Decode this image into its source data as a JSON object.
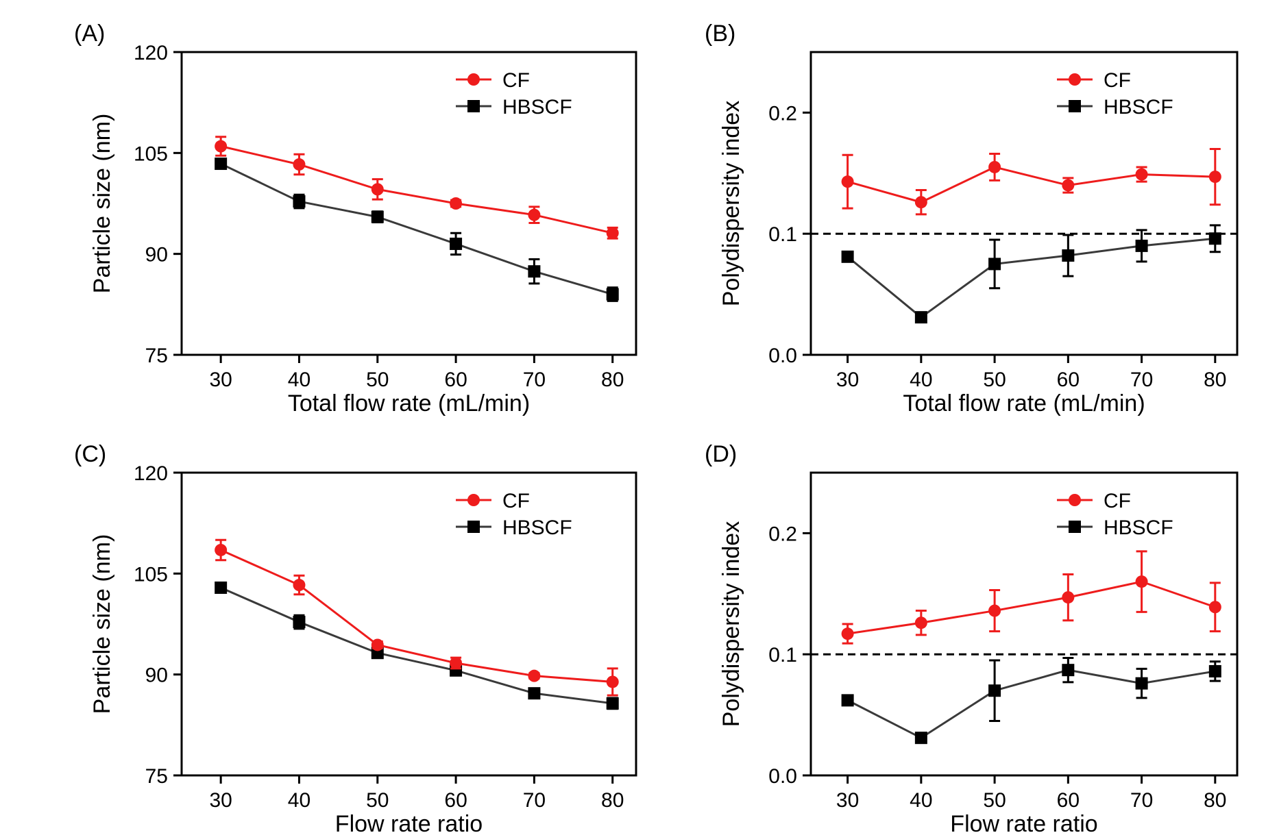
{
  "figure": {
    "colors": {
      "cf": "#ee1c1c",
      "hbscf": "#000000",
      "hbscf_line": "#3a3a3a",
      "reference": "#000000"
    }
  },
  "chart_data": [
    {
      "panel": "(A)",
      "type": "line",
      "xlabel": "Total flow rate (mL/min)",
      "ylabel": "Particle size (nm)",
      "x": [
        30,
        40,
        50,
        60,
        70,
        80
      ],
      "xlim": [
        25,
        83
      ],
      "ylim": [
        75,
        120
      ],
      "yticks": [
        75,
        90,
        105,
        120
      ],
      "ytick_labels": [
        "75",
        "90",
        "105",
        "120"
      ],
      "xtick_labels": [
        "30",
        "40",
        "50",
        "60",
        "70",
        "80"
      ],
      "legend_position": "top-right",
      "series": [
        {
          "name": "CF",
          "marker": "circle",
          "values": [
            106.0,
            103.3,
            99.6,
            97.5,
            95.8,
            93.1
          ],
          "errors": [
            1.4,
            1.5,
            1.5,
            0.5,
            1.2,
            0.8
          ]
        },
        {
          "name": "HBSCF",
          "marker": "square",
          "values": [
            103.4,
            97.8,
            95.5,
            91.5,
            87.4,
            84.0
          ],
          "errors": [
            0.6,
            1.0,
            0.8,
            1.6,
            1.8,
            1.0
          ]
        }
      ]
    },
    {
      "panel": "(B)",
      "type": "line",
      "xlabel": "Total flow rate (mL/min)",
      "ylabel": "Polydispersity index",
      "x": [
        30,
        40,
        50,
        60,
        70,
        80
      ],
      "xlim": [
        25,
        83
      ],
      "ylim": [
        0.0,
        0.25
      ],
      "yticks": [
        0.0,
        0.1,
        0.2
      ],
      "ytick_labels": [
        "0.0",
        "0.1",
        "0.2"
      ],
      "xtick_labels": [
        "30",
        "40",
        "50",
        "60",
        "70",
        "80"
      ],
      "reference_line": 0.1,
      "legend_position": "top-right",
      "series": [
        {
          "name": "CF",
          "marker": "circle",
          "values": [
            0.143,
            0.126,
            0.155,
            0.14,
            0.149,
            0.147
          ],
          "errors": [
            0.022,
            0.01,
            0.011,
            0.006,
            0.006,
            0.023
          ]
        },
        {
          "name": "HBSCF",
          "marker": "square",
          "values": [
            0.081,
            0.031,
            0.075,
            0.082,
            0.09,
            0.096
          ],
          "errors": [
            0.0,
            0.0,
            0.02,
            0.017,
            0.013,
            0.011
          ]
        }
      ]
    },
    {
      "panel": "(C)",
      "type": "line",
      "xlabel": "Flow rate ratio",
      "ylabel": "Particle size (nm)",
      "x": [
        30,
        40,
        50,
        60,
        70,
        80
      ],
      "xlim": [
        25,
        83
      ],
      "ylim": [
        75,
        120
      ],
      "yticks": [
        75,
        90,
        105,
        120
      ],
      "ytick_labels": [
        "75",
        "90",
        "105",
        "120"
      ],
      "xtick_labels": [
        "30",
        "40",
        "50",
        "60",
        "70",
        "80"
      ],
      "legend_position": "top-right",
      "series": [
        {
          "name": "CF",
          "marker": "circle",
          "values": [
            108.5,
            103.3,
            94.4,
            91.7,
            89.8,
            88.9
          ],
          "errors": [
            1.5,
            1.4,
            0.5,
            0.8,
            0.4,
            2.0
          ]
        },
        {
          "name": "HBSCF",
          "marker": "square",
          "values": [
            102.9,
            97.8,
            93.2,
            90.6,
            87.2,
            85.7
          ],
          "errors": [
            0.4,
            1.0,
            0.5,
            0.5,
            0.6,
            0.8
          ]
        }
      ]
    },
    {
      "panel": "(D)",
      "type": "line",
      "xlabel": "Flow rate ratio",
      "ylabel": "Polydispersity index",
      "x": [
        30,
        40,
        50,
        60,
        70,
        80
      ],
      "xlim": [
        25,
        83
      ],
      "ylim": [
        0.0,
        0.25
      ],
      "yticks": [
        0.0,
        0.1,
        0.2
      ],
      "ytick_labels": [
        "0.0",
        "0.1",
        "0.2"
      ],
      "xtick_labels": [
        "30",
        "40",
        "50",
        "60",
        "70",
        "80"
      ],
      "reference_line": 0.1,
      "legend_position": "top-right",
      "series": [
        {
          "name": "CF",
          "marker": "circle",
          "values": [
            0.117,
            0.126,
            0.136,
            0.147,
            0.16,
            0.139
          ],
          "errors": [
            0.008,
            0.01,
            0.017,
            0.019,
            0.025,
            0.02
          ]
        },
        {
          "name": "HBSCF",
          "marker": "square",
          "values": [
            0.062,
            0.031,
            0.07,
            0.087,
            0.076,
            0.086
          ],
          "errors": [
            0.004,
            0.0,
            0.025,
            0.01,
            0.012,
            0.008
          ]
        }
      ]
    }
  ]
}
